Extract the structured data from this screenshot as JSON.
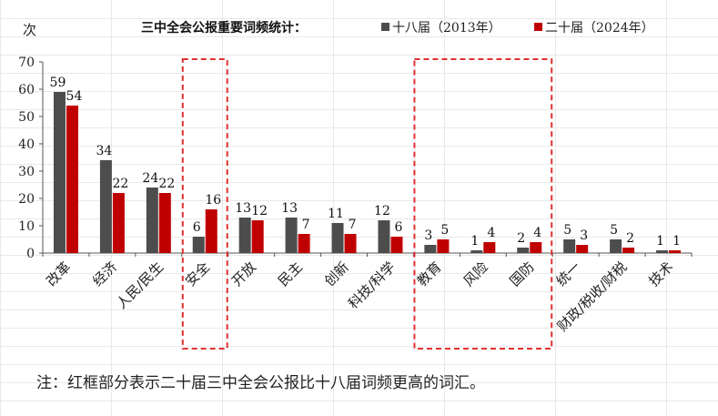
{
  "chart_data": {
    "type": "bar",
    "title": "三中全会公报重要词频统计：",
    "ylabel": "次",
    "xlabel": "",
    "ylim": [
      0,
      70
    ],
    "yticks": [
      0,
      10,
      20,
      30,
      40,
      50,
      60,
      70
    ],
    "grid": false,
    "legend_position": "top-right",
    "categories": [
      "改革",
      "经济",
      "人民/民生",
      "安全",
      "开放",
      "民主",
      "创新",
      "科技/科学",
      "教育",
      "风险",
      "国防",
      "统一",
      "财政/税收/财税",
      "技术"
    ],
    "series": [
      {
        "name": "十八届（2013年）",
        "color": "#4d4d4d",
        "values": [
          59,
          34,
          24,
          6,
          13,
          13,
          11,
          12,
          3,
          1,
          2,
          5,
          5,
          1
        ]
      },
      {
        "name": "二十届（2024年）",
        "color": "#c00000",
        "values": [
          54,
          22,
          22,
          16,
          12,
          7,
          7,
          6,
          5,
          4,
          4,
          3,
          2,
          1
        ]
      }
    ],
    "highlight_groups": [
      [
        "安全"
      ],
      [
        "教育",
        "风险",
        "国防"
      ]
    ],
    "highlight_color": "#e03030"
  },
  "note": "注：红框部分表示二十届三中全会公报比十八届词频更高的词汇。"
}
